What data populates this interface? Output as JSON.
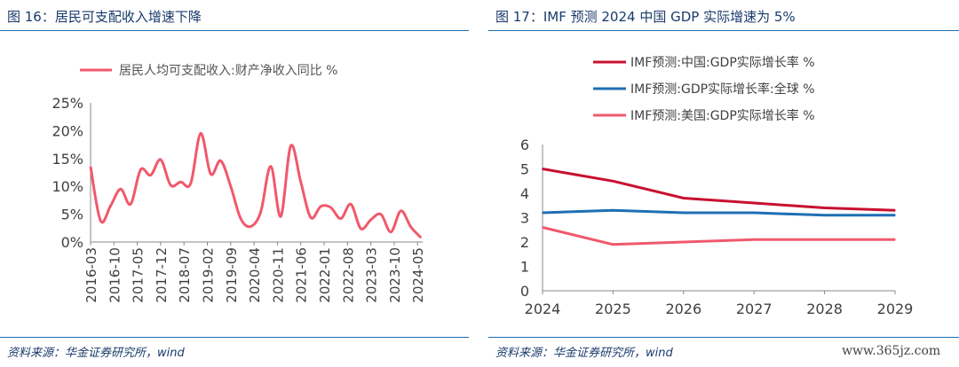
{
  "left": {
    "title": "图 16：居民可支配收入增速下降",
    "source": "资料来源：华金证券研究所，wind",
    "chart_data": {
      "type": "line",
      "title": "",
      "legend_position": "top-center",
      "ylim": [
        0,
        25
      ],
      "y_ticks": [
        "0%",
        "5%",
        "10%",
        "15%",
        "20%",
        "25%"
      ],
      "x_tick_labels": [
        "2016-03",
        "2016-10",
        "2017-05",
        "2017-12",
        "2018-07",
        "2019-02",
        "2019-09",
        "2020-04",
        "2020-11",
        "2021-06",
        "2022-01",
        "2022-08",
        "2023-03",
        "2023-10",
        "2024-05"
      ],
      "series": [
        {
          "name": "居民人均可支配收入:财产净收入同比 %",
          "color": "#f0596b",
          "x": [
            "2016-03",
            "2016-06",
            "2016-09",
            "2016-12",
            "2017-03",
            "2017-06",
            "2017-09",
            "2017-12",
            "2018-03",
            "2018-06",
            "2018-09",
            "2018-12",
            "2019-03",
            "2019-06",
            "2019-09",
            "2019-12",
            "2020-03",
            "2020-06",
            "2020-09",
            "2020-12",
            "2021-03",
            "2021-06",
            "2021-09",
            "2021-12",
            "2022-03",
            "2022-06",
            "2022-09",
            "2022-12",
            "2023-03",
            "2023-06",
            "2023-09",
            "2023-12",
            "2024-03",
            "2024-06"
          ],
          "values": [
            13.5,
            3.8,
            6.5,
            9.5,
            6.8,
            13,
            12,
            14.8,
            10.2,
            10.8,
            10.5,
            19.5,
            12.2,
            14.6,
            10,
            4.2,
            2.8,
            5.4,
            13.6,
            4.6,
            17.3,
            10.8,
            4.4,
            6.4,
            6.2,
            4.2,
            6.8,
            2.4,
            4.0,
            5.0,
            1.8,
            5.6,
            2.7,
            0.8
          ]
        }
      ]
    }
  },
  "right": {
    "title": "图 17：IMF 预测 2024 中国 GDP 实际增速为 5%",
    "source": "资料来源：华金证券研究所，wind",
    "chart_data": {
      "type": "line",
      "title": "",
      "legend_position": "top-center",
      "ylim": [
        0,
        6
      ],
      "y_ticks": [
        "0",
        "1",
        "2",
        "3",
        "4",
        "5",
        "6"
      ],
      "categories": [
        "2024",
        "2025",
        "2026",
        "2027",
        "2028",
        "2029"
      ],
      "series": [
        {
          "name": "IMF预测:中国:GDP实际增长率 %",
          "color": "#c8102e",
          "values": [
            5.0,
            4.5,
            3.8,
            3.6,
            3.4,
            3.3
          ]
        },
        {
          "name": "IMF预测:GDP实际增长率:全球 %",
          "color": "#1f6fb3",
          "values": [
            3.2,
            3.3,
            3.2,
            3.2,
            3.1,
            3.1
          ]
        },
        {
          "name": "IMF预测:美国:GDP实际增长率 %",
          "color": "#f0596b",
          "values": [
            2.6,
            1.9,
            2.0,
            2.1,
            2.1,
            2.1
          ]
        }
      ]
    }
  },
  "watermark": "www.365jz.com"
}
